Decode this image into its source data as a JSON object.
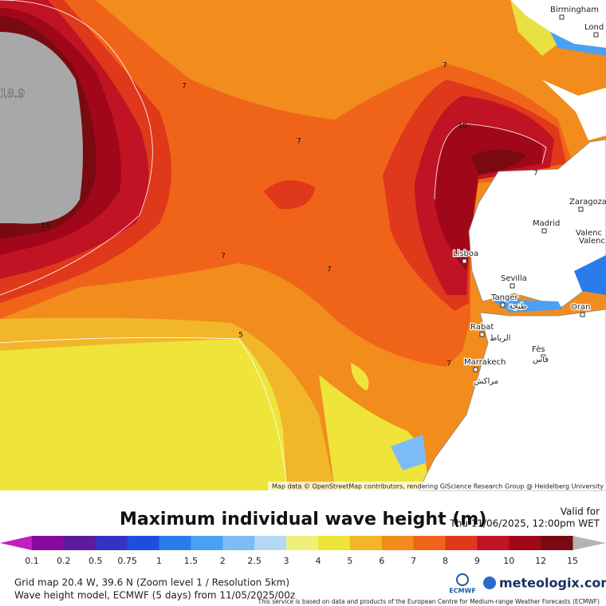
{
  "map": {
    "max_label": "18.9",
    "contour_labels": [
      "7",
      "7",
      "7",
      "7",
      "7",
      "7",
      "7",
      "10",
      "15",
      "5"
    ],
    "cities": [
      "Birmingham",
      "Lond",
      "Zaragoza",
      "Madrid",
      "Valenc",
      "Valenc",
      "Lisboa",
      "Sevilla",
      "Tanger",
      "طنجة",
      "Oran",
      "Rabat",
      "الرباط",
      "Fès",
      "فاس",
      "Marrakech",
      "مراكش"
    ],
    "attribution": "Map data © OpenStreetMap contributors, rendering GIScience Research Group @ Heidelberg University"
  },
  "panel": {
    "title": "Maximum individual wave height (m)",
    "valid_label": "Valid for",
    "valid_time": "Thu 11/06/2025, 12:00pm WET",
    "legend": {
      "ticks": [
        0.1,
        0.2,
        0.5,
        0.75,
        1,
        1.5,
        2,
        2.5,
        3,
        4,
        5,
        6,
        7,
        8,
        9,
        10,
        12,
        15
      ],
      "under_color": "#c21fc2",
      "colors": [
        "#8a0aa0",
        "#5c1a9c",
        "#3434c4",
        "#1e4ee0",
        "#2a7cec",
        "#4aa0f2",
        "#7cbcf6",
        "#b4d8f6",
        "#eef07a",
        "#eee43a",
        "#f2b62a",
        "#f28c1c",
        "#f0641a",
        "#e0381a",
        "#c01424",
        "#a0081a",
        "#7a0a12"
      ],
      "over_color": "#b4b4b4"
    },
    "grid_info": "Grid map 20.4 W, 39.6 N (Zoom level 1 / Resolution 5km)",
    "model_info": "Wave height model, ECMWF (5 days) from 11/05/2025/00z",
    "disclaimer": "This service is based on data and products of the European Centre for Medium-range Weather Forecasts (ECMWF)",
    "ecmwf": "ECMWF",
    "brand": "meteologix.com"
  }
}
